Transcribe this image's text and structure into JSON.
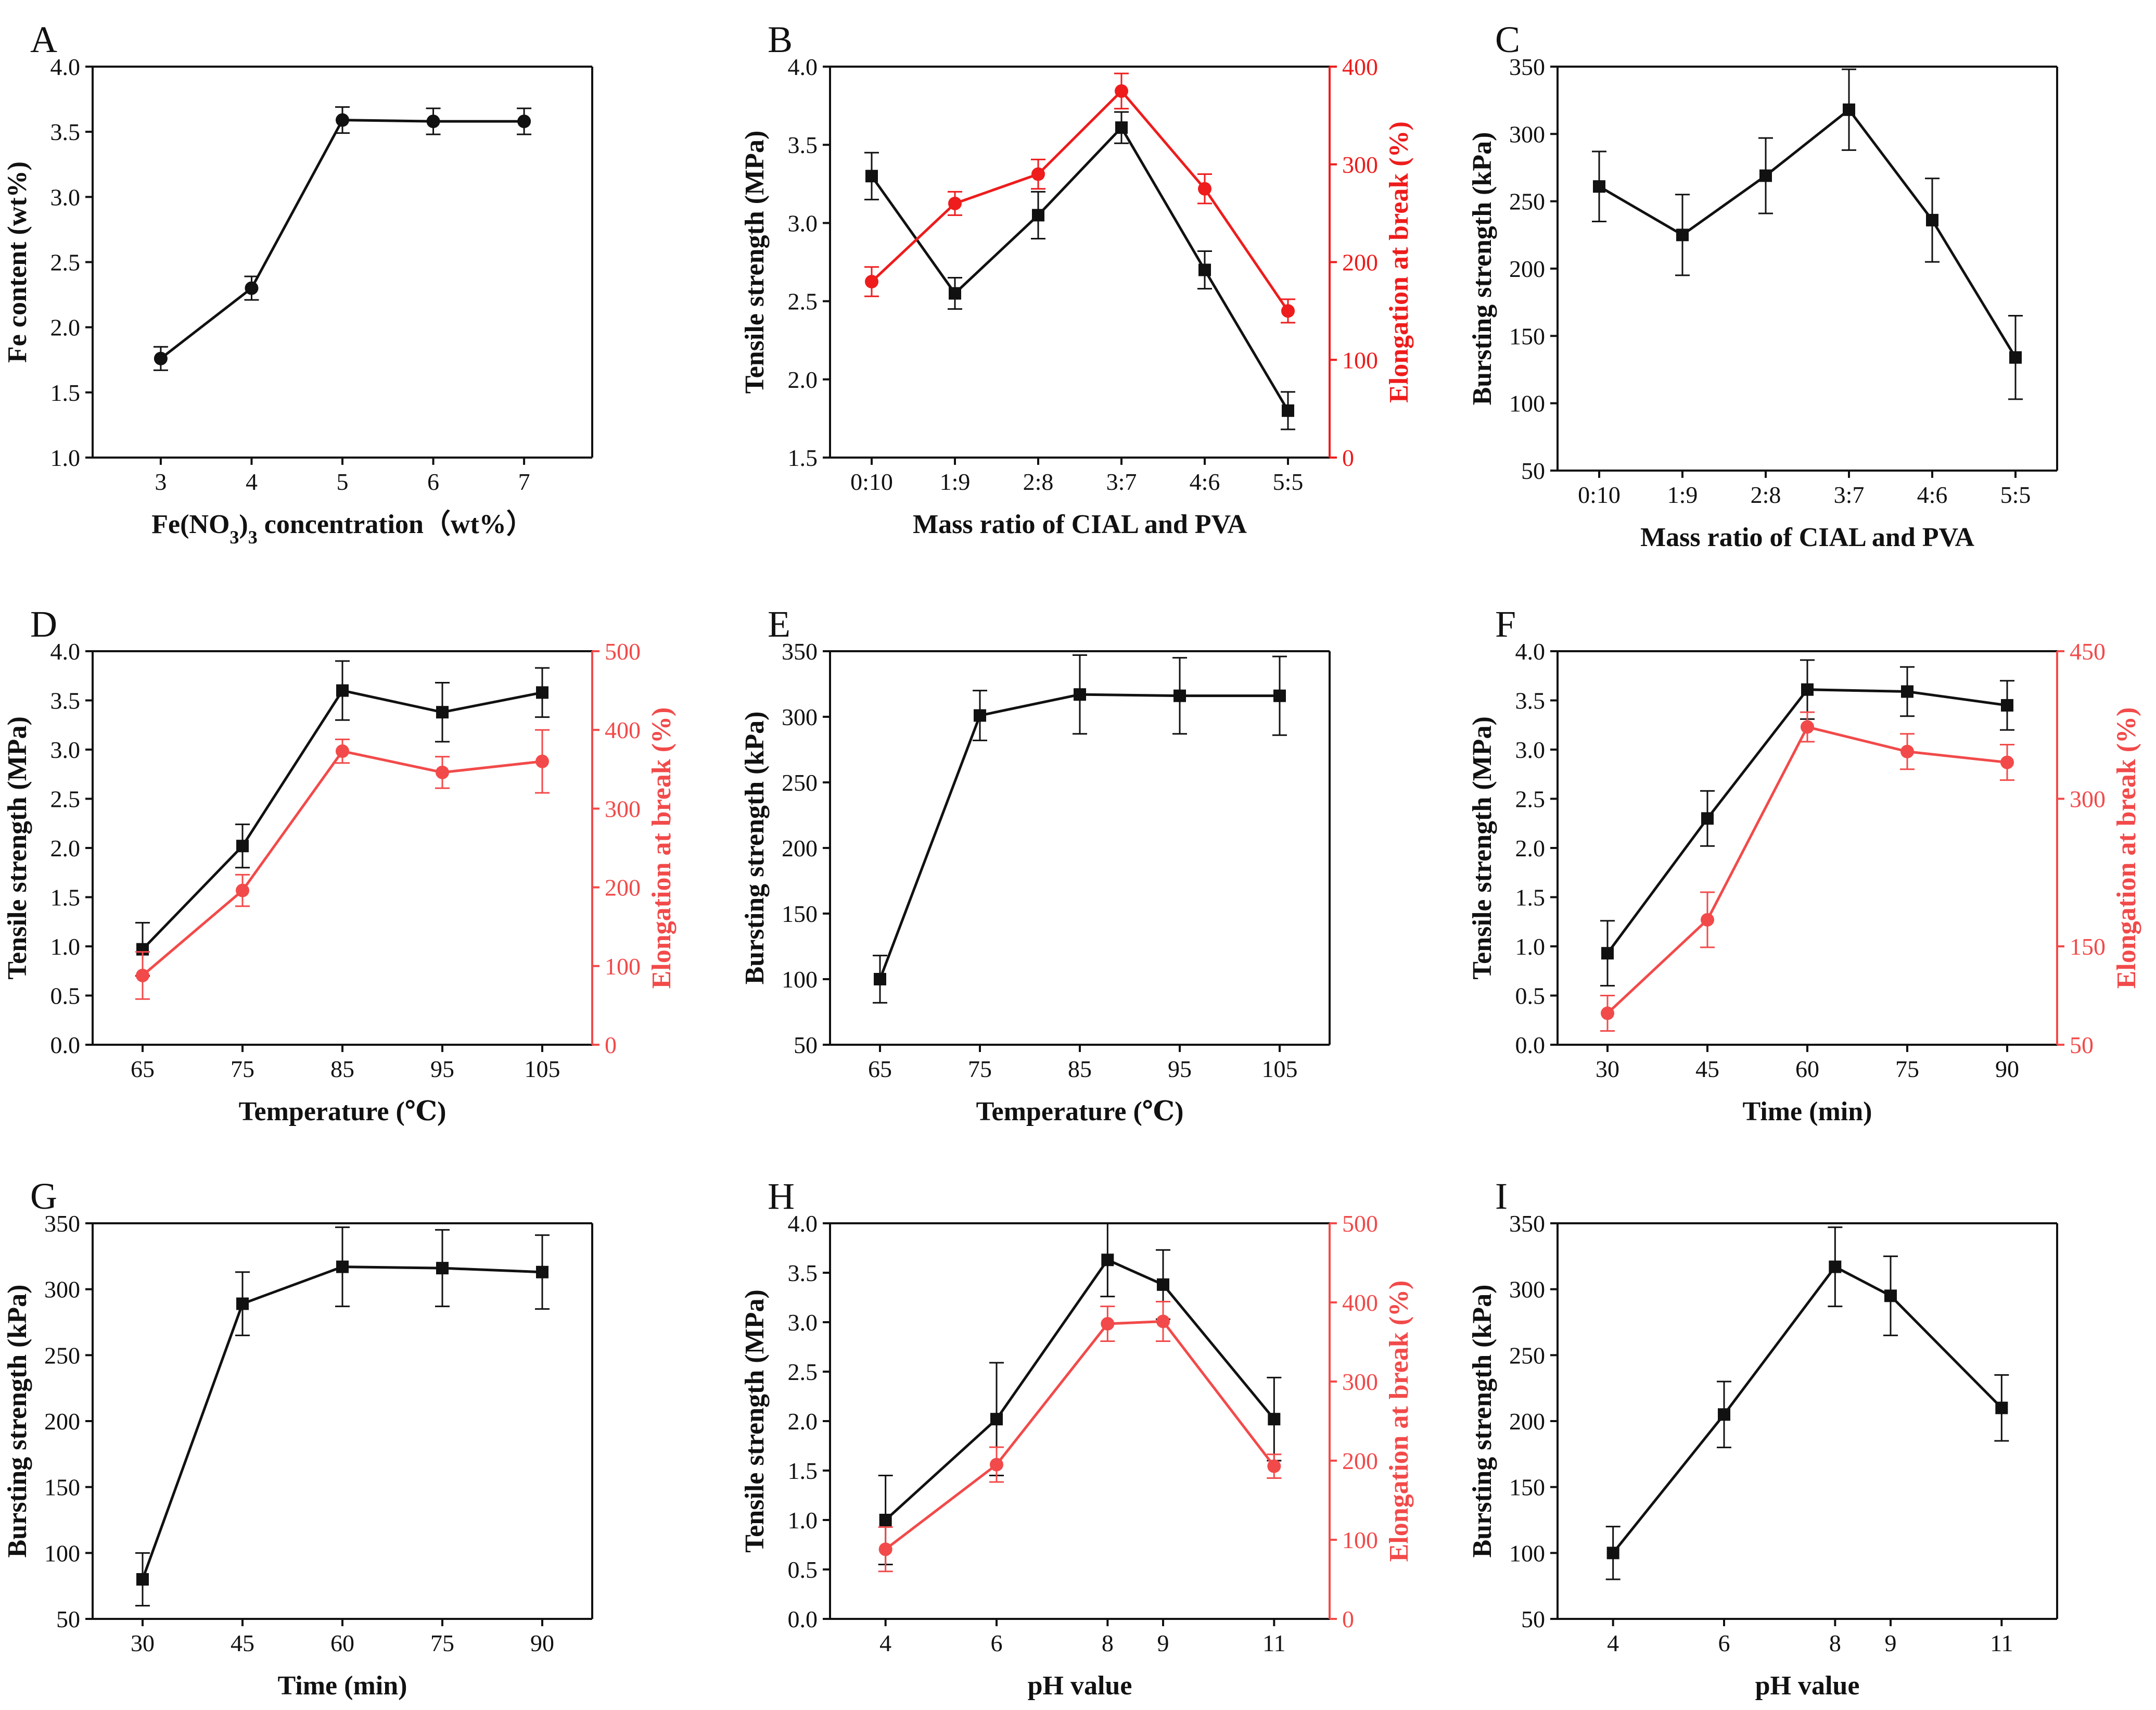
{
  "colors": {
    "black": "#111111",
    "red": "#ee1c1c",
    "light_red": "#f24a4a"
  },
  "chart_data": [
    {
      "id": "A",
      "type": "line",
      "letter": "A",
      "xlabel": "Fe(NO3)3 concentration（wt%）",
      "ylabel": "Fe content (wt%)",
      "categories": [
        "3",
        "4",
        "5",
        "6",
        "7"
      ],
      "x": [
        3,
        4,
        5,
        6,
        7
      ],
      "xlim": [
        2.25,
        7.75
      ],
      "y_left": {
        "lim": [
          1.0,
          4.0
        ],
        "ticks": [
          1.0,
          1.5,
          2.0,
          2.5,
          3.0,
          3.5,
          4.0
        ],
        "tick_labels": [
          "1.0",
          "1.5",
          "2.0",
          "2.5",
          "3.0",
          "3.5",
          "4.0"
        ]
      },
      "series": [
        {
          "name": "Fe content",
          "axis": "left",
          "color": "#111111",
          "marker": "circle",
          "values": [
            1.76,
            2.3,
            3.59,
            3.58,
            3.58
          ],
          "errors": [
            0.09,
            0.09,
            0.1,
            0.1,
            0.1
          ]
        }
      ]
    },
    {
      "id": "B",
      "type": "line",
      "letter": "B",
      "xlabel": "Mass ratio of CIAL and PVA",
      "ylabel": "Tensile strength (MPa)",
      "ylabel_right": "Elongation at break (%)",
      "categories": [
        "0:10",
        "1:9",
        "2:8",
        "3:7",
        "4:6",
        "5:5"
      ],
      "x": [
        0,
        1,
        2,
        3,
        4,
        5
      ],
      "xlim": [
        -0.5,
        5.5
      ],
      "y_left": {
        "lim": [
          1.5,
          4.0
        ],
        "ticks": [
          1.5,
          2.0,
          2.5,
          3.0,
          3.5,
          4.0
        ],
        "tick_labels": [
          "1.5",
          "2.0",
          "2.5",
          "3.0",
          "3.5",
          "4.0"
        ]
      },
      "y_right": {
        "lim": [
          0,
          400
        ],
        "ticks": [
          0,
          100,
          200,
          300,
          400
        ],
        "tick_labels": [
          "0",
          "100",
          "200",
          "300",
          "400"
        ]
      },
      "series": [
        {
          "name": "Tensile strength",
          "axis": "left",
          "color": "#111111",
          "marker": "square",
          "values": [
            3.3,
            2.55,
            3.05,
            3.61,
            2.7,
            1.8
          ],
          "errors": [
            0.15,
            0.1,
            0.15,
            0.1,
            0.12,
            0.12
          ]
        },
        {
          "name": "Elongation at break",
          "axis": "right",
          "color": "#ee1c1c",
          "marker": "circle",
          "values": [
            180,
            260,
            290,
            375,
            275,
            150
          ],
          "errors": [
            15,
            12,
            15,
            18,
            15,
            12
          ]
        }
      ]
    },
    {
      "id": "C",
      "type": "line",
      "letter": "C",
      "xlabel": "Mass ratio of CIAL and PVA",
      "ylabel": "Bursting strength (kPa)",
      "categories": [
        "0:10",
        "1:9",
        "2:8",
        "3:7",
        "4:6",
        "5:5"
      ],
      "x": [
        0,
        1,
        2,
        3,
        4,
        5
      ],
      "xlim": [
        -0.5,
        5.5
      ],
      "y_left": {
        "lim": [
          50,
          350
        ],
        "ticks": [
          50,
          100,
          150,
          200,
          250,
          300,
          350
        ],
        "tick_labels": [
          "50",
          "100",
          "150",
          "200",
          "250",
          "300",
          "350"
        ]
      },
      "series": [
        {
          "name": "Bursting strength",
          "axis": "left",
          "color": "#111111",
          "marker": "square",
          "values": [
            261,
            225,
            269,
            318,
            236,
            134
          ],
          "errors": [
            26,
            30,
            28,
            30,
            31,
            31
          ]
        }
      ]
    },
    {
      "id": "D",
      "type": "line",
      "letter": "D",
      "xlabel": "Temperature (℃)",
      "ylabel": "Tensile strength (MPa)",
      "ylabel_right": "Elongation at break (%)",
      "categories": [
        "65",
        "75",
        "85",
        "95",
        "105"
      ],
      "x": [
        65,
        75,
        85,
        95,
        105
      ],
      "xlim": [
        60,
        110
      ],
      "y_left": {
        "lim": [
          0.0,
          4.0
        ],
        "ticks": [
          0.0,
          0.5,
          1.0,
          1.5,
          2.0,
          2.5,
          3.0,
          3.5,
          4.0
        ],
        "tick_labels": [
          "0.0",
          "0.5",
          "1.0",
          "1.5",
          "2.0",
          "2.5",
          "3.0",
          "3.5",
          "4.0"
        ]
      },
      "y_right": {
        "lim": [
          0,
          500
        ],
        "ticks": [
          0,
          100,
          200,
          300,
          400,
          500
        ],
        "tick_labels": [
          "0",
          "100",
          "200",
          "300",
          "400",
          "500"
        ]
      },
      "series": [
        {
          "name": "Tensile strength",
          "axis": "left",
          "color": "#111111",
          "marker": "square",
          "values": [
            0.97,
            2.02,
            3.6,
            3.38,
            3.58
          ],
          "errors": [
            0.27,
            0.22,
            0.3,
            0.3,
            0.25
          ]
        },
        {
          "name": "Elongation at break",
          "axis": "right",
          "color": "#f24a4a",
          "marker": "circle",
          "values": [
            88,
            196,
            373,
            346,
            360
          ],
          "errors": [
            30,
            20,
            15,
            20,
            40
          ]
        }
      ]
    },
    {
      "id": "E",
      "type": "line",
      "letter": "E",
      "xlabel": "Temperature (℃)",
      "ylabel": "Bursting strength (kPa)",
      "categories": [
        "65",
        "75",
        "85",
        "95",
        "105"
      ],
      "x": [
        65,
        75,
        85,
        95,
        105
      ],
      "xlim": [
        60,
        110
      ],
      "y_left": {
        "lim": [
          50,
          350
        ],
        "ticks": [
          50,
          100,
          150,
          200,
          250,
          300,
          350
        ],
        "tick_labels": [
          "50",
          "100",
          "150",
          "200",
          "250",
          "300",
          "350"
        ]
      },
      "series": [
        {
          "name": "Bursting strength",
          "axis": "left",
          "color": "#111111",
          "marker": "square",
          "values": [
            100,
            301,
            317,
            316,
            316
          ],
          "errors": [
            18,
            19,
            30,
            29,
            30
          ]
        }
      ]
    },
    {
      "id": "F",
      "type": "line",
      "letter": "F",
      "xlabel": "Time (min)",
      "ylabel": "Tensile strength (MPa)",
      "ylabel_right": "Elongation at break (%)",
      "categories": [
        "30",
        "45",
        "60",
        "75",
        "90"
      ],
      "x": [
        30,
        45,
        60,
        75,
        90
      ],
      "xlim": [
        22.5,
        97.5
      ],
      "y_left": {
        "lim": [
          0.0,
          4.0
        ],
        "ticks": [
          0.0,
          0.5,
          1.0,
          1.5,
          2.0,
          2.5,
          3.0,
          3.5,
          4.0
        ],
        "tick_labels": [
          "0.0",
          "0.5",
          "1.0",
          "1.5",
          "2.0",
          "2.5",
          "3.0",
          "3.5",
          "4.0"
        ]
      },
      "y_right": {
        "lim": [
          50,
          450
        ],
        "ticks": [
          50,
          150,
          300,
          450
        ],
        "tick_labels": [
          "50",
          "150",
          "300",
          "450"
        ]
      },
      "series": [
        {
          "name": "Tensile strength",
          "axis": "left",
          "color": "#111111",
          "marker": "square",
          "values": [
            0.93,
            2.3,
            3.61,
            3.59,
            3.45
          ],
          "errors": [
            0.33,
            0.28,
            0.3,
            0.25,
            0.25
          ]
        },
        {
          "name": "Elongation at break",
          "axis": "right",
          "color": "#f24a4a",
          "marker": "circle",
          "values": [
            82,
            177,
            373,
            348,
            337
          ],
          "errors": [
            18,
            28,
            15,
            18,
            18
          ]
        }
      ]
    },
    {
      "id": "G",
      "type": "line",
      "letter": "G",
      "xlabel": "Time (min)",
      "ylabel": "Bursting strength (kPa)",
      "categories": [
        "30",
        "45",
        "60",
        "75",
        "90"
      ],
      "x": [
        30,
        45,
        60,
        75,
        90
      ],
      "xlim": [
        22.5,
        97.5
      ],
      "y_left": {
        "lim": [
          50,
          350
        ],
        "ticks": [
          50,
          100,
          150,
          200,
          250,
          300,
          350
        ],
        "tick_labels": [
          "50",
          "100",
          "150",
          "200",
          "250",
          "300",
          "350"
        ]
      },
      "series": [
        {
          "name": "Bursting strength",
          "axis": "left",
          "color": "#111111",
          "marker": "square",
          "values": [
            80,
            289,
            317,
            316,
            313
          ],
          "errors": [
            20,
            24,
            30,
            29,
            28
          ]
        }
      ]
    },
    {
      "id": "H",
      "type": "line",
      "letter": "H",
      "xlabel": "pH value",
      "ylabel": "Tensile strength (MPa)",
      "ylabel_right": "Elongation at break (%)",
      "categories": [
        "4",
        "6",
        "8",
        "9",
        "11"
      ],
      "x": [
        4,
        6,
        8,
        9,
        11
      ],
      "xlim": [
        3,
        12
      ],
      "y_left": {
        "lim": [
          0.0,
          4.0
        ],
        "ticks": [
          0.0,
          0.5,
          1.0,
          1.5,
          2.0,
          2.5,
          3.0,
          3.5,
          4.0
        ],
        "tick_labels": [
          "0.0",
          "0.5",
          "1.0",
          "1.5",
          "2.0",
          "2.5",
          "3.0",
          "3.5",
          "4.0"
        ]
      },
      "y_right": {
        "lim": [
          0,
          500
        ],
        "ticks": [
          0,
          100,
          200,
          300,
          400,
          500
        ],
        "tick_labels": [
          "0",
          "100",
          "200",
          "300",
          "400",
          "500"
        ]
      },
      "series": [
        {
          "name": "Tensile strength",
          "axis": "left",
          "color": "#111111",
          "marker": "square",
          "values": [
            1.0,
            2.02,
            3.63,
            3.38,
            2.02
          ],
          "errors": [
            0.45,
            0.57,
            0.37,
            0.35,
            0.42
          ]
        },
        {
          "name": "Elongation at break",
          "axis": "right",
          "color": "#f24a4a",
          "marker": "circle",
          "values": [
            88,
            195,
            373,
            376,
            193
          ],
          "errors": [
            28,
            22,
            22,
            25,
            15
          ]
        }
      ]
    },
    {
      "id": "I",
      "type": "line",
      "letter": "I",
      "xlabel": "pH value",
      "ylabel": "Bursting strength (kPa)",
      "categories": [
        "4",
        "6",
        "8",
        "9",
        "11"
      ],
      "x": [
        4,
        6,
        8,
        9,
        11
      ],
      "xlim": [
        3,
        12
      ],
      "y_left": {
        "lim": [
          50,
          350
        ],
        "ticks": [
          50,
          100,
          150,
          200,
          250,
          300,
          350
        ],
        "tick_labels": [
          "50",
          "100",
          "150",
          "200",
          "250",
          "300",
          "350"
        ]
      },
      "series": [
        {
          "name": "Bursting strength",
          "axis": "left",
          "color": "#111111",
          "marker": "square",
          "values": [
            100,
            205,
            317,
            295,
            210
          ],
          "errors": [
            20,
            25,
            30,
            30,
            25
          ]
        }
      ]
    }
  ]
}
